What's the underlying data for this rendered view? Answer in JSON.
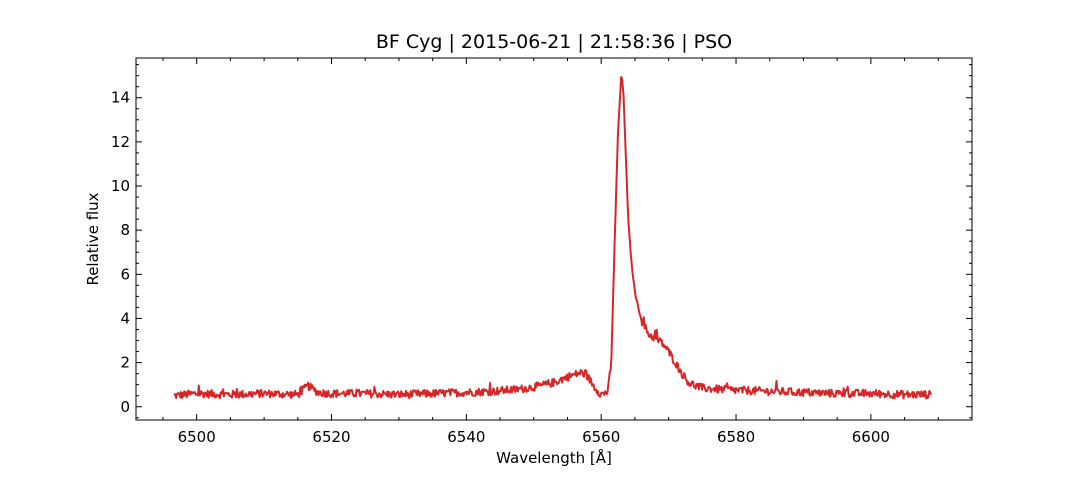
{
  "chart_data": {
    "type": "line",
    "title": "BF Cyg | 2015-06-21 | 21:58:36 | PSO",
    "xlabel": "Wavelength [Å]",
    "ylabel": "Relative flux",
    "xlim": [
      6491,
      6615
    ],
    "ylim": [
      -0.6,
      15.8
    ],
    "x_ticks": [
      6500,
      6520,
      6540,
      6560,
      6580,
      6600
    ],
    "y_ticks": [
      0,
      2,
      4,
      6,
      8,
      10,
      12,
      14
    ],
    "x_minor_step": 5,
    "y_minor_step": 0.5,
    "grid": false,
    "legend": "none",
    "line_color": "#d62728",
    "series": [
      {
        "x": [
          6496.6,
          6500,
          6505,
          6510,
          6515,
          6516.5,
          6518,
          6520,
          6525,
          6530,
          6535,
          6540,
          6544,
          6548,
          6551,
          6553,
          6555,
          6557,
          6557.8,
          6559,
          6560,
          6561,
          6561.5,
          6562,
          6562.5,
          6563,
          6563.3,
          6563.7,
          6564,
          6564.5,
          6565,
          6565.5,
          6566,
          6567,
          6568,
          6569,
          6570,
          6571,
          6572,
          6573,
          6574,
          6575,
          6577,
          6580,
          6585,
          6590,
          6595,
          6600,
          6605,
          6609
        ],
        "y": [
          0.5,
          0.6,
          0.55,
          0.6,
          0.55,
          0.95,
          0.65,
          0.6,
          0.6,
          0.55,
          0.6,
          0.65,
          0.7,
          0.8,
          0.95,
          1.1,
          1.35,
          1.55,
          1.45,
          0.9,
          0.55,
          0.7,
          2.0,
          7.5,
          12.5,
          15.1,
          14.2,
          11.0,
          8.5,
          6.5,
          5.2,
          4.5,
          3.9,
          3.3,
          3.1,
          2.9,
          2.5,
          2.0,
          1.5,
          1.1,
          0.95,
          0.85,
          0.8,
          0.75,
          0.7,
          0.65,
          0.6,
          0.6,
          0.55,
          0.55
        ]
      }
    ]
  }
}
